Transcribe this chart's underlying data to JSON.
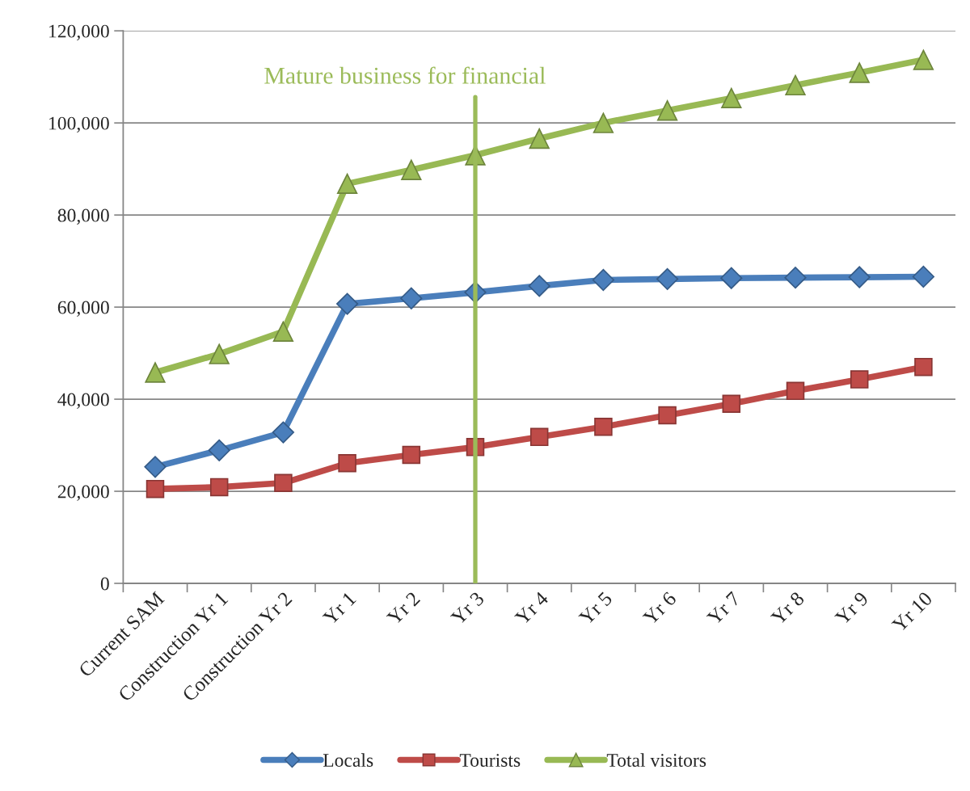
{
  "chart_data": {
    "type": "line",
    "categories": [
      "Current SAM",
      "Construction Yr 1",
      "Construction Yr 2",
      "Yr 1",
      "Yr 2",
      "Yr 3",
      "Yr 4",
      "Yr 5",
      "Yr 6",
      "Yr 7",
      "Yr 8",
      "Yr 9",
      "Yr 10"
    ],
    "series": [
      {
        "name": "Locals",
        "color": "#4a7ebb",
        "marker": "diamond",
        "values": [
          25300,
          28900,
          32800,
          60700,
          61900,
          63200,
          64600,
          65900,
          66100,
          66300,
          66400,
          66500,
          66600
        ]
      },
      {
        "name": "Tourists",
        "color": "#be4b48",
        "marker": "square",
        "values": [
          20500,
          20900,
          21800,
          26100,
          27900,
          29600,
          31800,
          34000,
          36500,
          39000,
          41800,
          44300,
          47000
        ]
      },
      {
        "name": "Total visitors",
        "color": "#98b954",
        "marker": "triangle",
        "values": [
          45800,
          49800,
          54700,
          86800,
          89800,
          93000,
          96600,
          100000,
          102700,
          105400,
          108200,
          110900,
          113700
        ]
      }
    ],
    "ylim": [
      0,
      120000
    ],
    "yticks": [
      0,
      {
        "value": 20000,
        "label": "20,000"
      },
      {
        "value": 40000,
        "label": "40,000"
      },
      {
        "value": 60000,
        "label": "60,000"
      },
      {
        "value": 80000,
        "label": "80,000"
      },
      {
        "value": 100000,
        "label": "100,000"
      },
      {
        "value": 120000,
        "label": "120,000"
      }
    ],
    "grid": "y",
    "legend": "bottom",
    "ref_lines": [
      {
        "axis": "x",
        "value": "Yr 3",
        "label": "Mature business for financial",
        "color": "#9bbb59"
      }
    ]
  }
}
